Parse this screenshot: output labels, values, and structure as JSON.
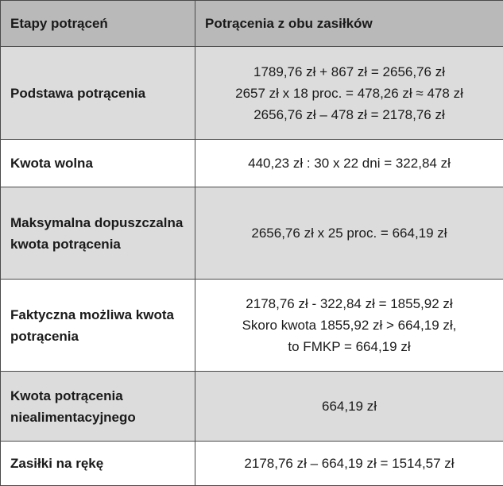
{
  "header": {
    "col1": "Etapy potrąceń",
    "col2": "Potrącenia z obu zasiłków"
  },
  "rows": [
    {
      "label": "Podstawa potrącenia",
      "lines": [
        "1789,76 zł + 867 zł = 2656,76 zł",
        "2657 zł x 18 proc. = 478,26 zł ≈ 478 zł",
        "2656,76 zł – 478 zł = 2178,76 zł"
      ]
    },
    {
      "label": "Kwota wolna",
      "lines": [
        "440,23 zł : 30 x 22 dni = 322,84 zł"
      ]
    },
    {
      "label": "Maksymalna dopuszczalna kwota potrącenia",
      "lines": [
        "2656,76 zł x 25 proc. = 664,19 zł"
      ]
    },
    {
      "label": "Faktyczna możliwa kwota potrącenia",
      "lines": [
        "2178,76 zł - 322,84 zł = 1855,92 zł",
        "Skoro kwota 1855,92 zł > 664,19 zł,",
        "to FMKP = 664,19 zł"
      ]
    },
    {
      "label": "Kwota potrącenia niealimentacyjnego",
      "lines": [
        "664,19 zł"
      ]
    },
    {
      "label": "Zasiłki na rękę",
      "lines": [
        "2178,76 zł – 664,19 zł = 1514,57 zł"
      ]
    }
  ],
  "colors": {
    "header_bg": "#b9b9b9",
    "shaded_row_bg": "#dcdcdc",
    "plain_row_bg": "#ffffff",
    "border": "#4a4a4a"
  }
}
